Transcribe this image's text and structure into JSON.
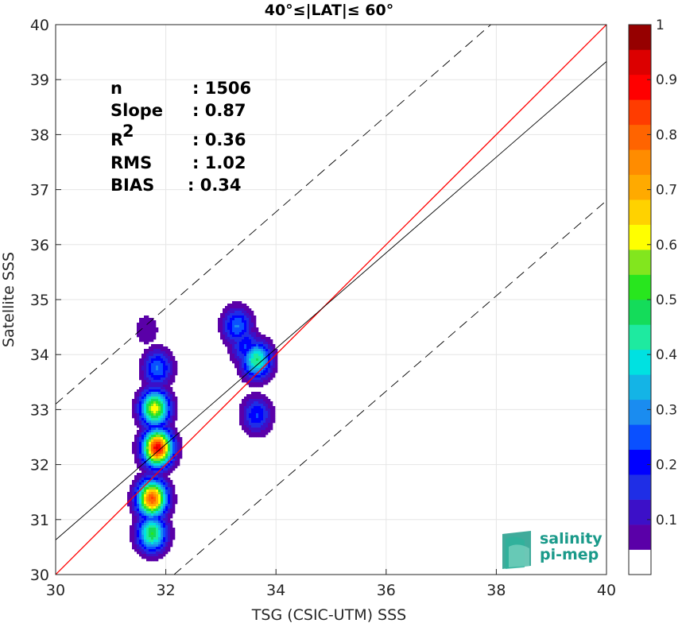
{
  "chart_data": {
    "type": "heatmap",
    "title": "40°≤|LAT|≤ 60°",
    "xlabel": "TSG (CSIC-UTM) SSS",
    "ylabel": "Satellite SSS",
    "xlim": [
      30,
      40
    ],
    "ylim": [
      30,
      40
    ],
    "xticks": [
      "30",
      "32",
      "34",
      "36",
      "38",
      "40"
    ],
    "yticks": [
      "30",
      "31",
      "32",
      "33",
      "34",
      "35",
      "36",
      "37",
      "38",
      "39",
      "40"
    ],
    "grid": true,
    "stats": [
      {
        "label": "n",
        "value": ": 1506"
      },
      {
        "label": "Slope",
        "value": ": 0.87"
      },
      {
        "label": "R",
        "sup": "2",
        "value": ": 0.36"
      },
      {
        "label": "RMS",
        "value": ": 1.02"
      },
      {
        "label": "BIAS",
        "value": ": 0.34"
      }
    ],
    "lines": [
      {
        "kind": "one-to-one",
        "color": "#ff0000",
        "x": [
          30,
          40
        ],
        "y": [
          30,
          40
        ]
      },
      {
        "kind": "regression",
        "color": "#000000",
        "x": [
          30,
          40
        ],
        "y": [
          30.63,
          39.33
        ]
      },
      {
        "kind": "upper-bound-dashed",
        "color": "#000000",
        "x": [
          30,
          37.9
        ],
        "y": [
          33.1,
          40
        ]
      },
      {
        "kind": "lower-bound-dashed",
        "color": "#000000",
        "x": [
          32.15,
          40
        ],
        "y": [
          30,
          36.8
        ]
      }
    ],
    "density_peaks": [
      {
        "x": 31.75,
        "y": 30.75,
        "value": 0.55
      },
      {
        "x": 31.75,
        "y": 31.38,
        "value": 0.9
      },
      {
        "x": 31.85,
        "y": 32.3,
        "value": 1.0
      },
      {
        "x": 31.8,
        "y": 33.02,
        "value": 0.68
      },
      {
        "x": 31.85,
        "y": 33.75,
        "value": 0.3
      },
      {
        "x": 31.65,
        "y": 34.45,
        "value": 0.08
      },
      {
        "x": 33.3,
        "y": 34.52,
        "value": 0.3
      },
      {
        "x": 33.65,
        "y": 33.9,
        "value": 0.5
      },
      {
        "x": 33.45,
        "y": 34.15,
        "value": 0.25
      },
      {
        "x": 33.65,
        "y": 32.9,
        "value": 0.25
      }
    ],
    "colorbar": {
      "min": 0,
      "max": 1,
      "ticks": [
        "0.1",
        "0.2",
        "0.3",
        "0.4",
        "0.5",
        "0.6",
        "0.7",
        "0.8",
        "0.9",
        "1"
      ],
      "levels": [
        "#ffffff",
        "#5a00a8",
        "#3c10c8",
        "#1f2ee6",
        "#0000ff",
        "#0a50ff",
        "#1a8cf0",
        "#14b4e6",
        "#00e1e1",
        "#1eeaa0",
        "#14dc5a",
        "#28e61e",
        "#82e61e",
        "#ffff00",
        "#ffd200",
        "#ffaa00",
        "#ff8c00",
        "#ff6400",
        "#ff3c00",
        "#ff0000",
        "#dc0000",
        "#960000"
      ]
    }
  },
  "logo": {
    "line1": "salinity",
    "line2": "pi-mep"
  }
}
